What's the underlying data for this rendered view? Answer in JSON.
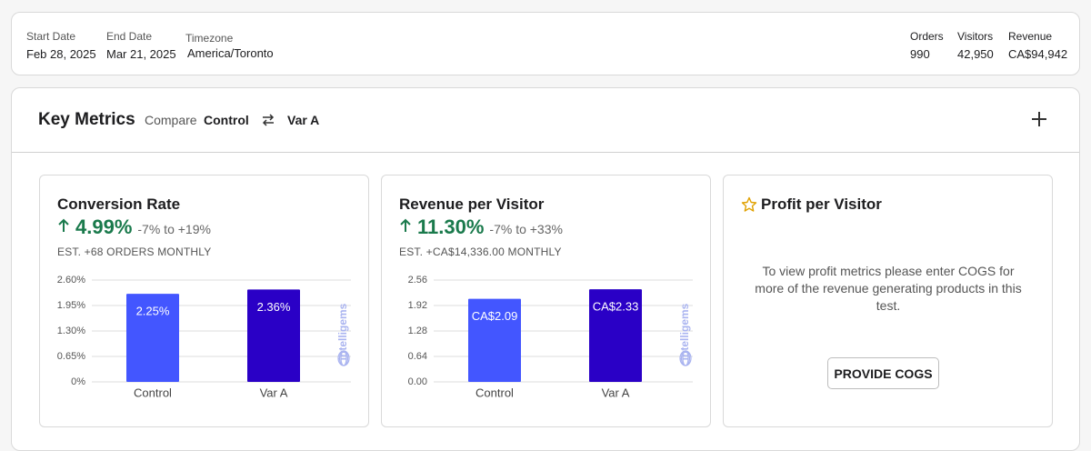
{
  "header": {
    "start_date": {
      "label": "Start Date",
      "value": "Feb 28, 2025"
    },
    "end_date": {
      "label": "End Date",
      "value": "Mar 21, 2025"
    },
    "timezone": {
      "label": "Timezone",
      "value": "America/Toronto"
    },
    "orders": {
      "label": "Orders",
      "value": "990"
    },
    "visitors": {
      "label": "Visitors",
      "value": "42,950"
    },
    "revenue": {
      "label": "Revenue",
      "value": "CA$94,942"
    }
  },
  "key_metrics": {
    "title": "Key Metrics",
    "compare_label": "Compare",
    "control": "Control",
    "variant": "Var A"
  },
  "cards": [
    {
      "title": "Conversion Rate",
      "value": "4.99%",
      "range": "-7% to +19%",
      "estimate": "EST. +68 ORDERS MONTHLY"
    },
    {
      "title": "Revenue per Visitor",
      "value": "11.30%",
      "range": "-7% to +33%",
      "estimate": "EST. +CA$14,336.00 MONTHLY"
    },
    {
      "title": "Profit per Visitor",
      "message": "To view profit metrics please enter COGS for more of the revenue generating products in this test.",
      "button": "PROVIDE COGS"
    }
  ],
  "chart_data": [
    {
      "type": "bar",
      "categories": [
        "Control",
        "Var A"
      ],
      "values": [
        2.25,
        2.36
      ],
      "value_labels": [
        "2.25%",
        "2.36%"
      ],
      "colors": [
        "#4356ff",
        "#2a00c6"
      ],
      "ylim": [
        0,
        2.6
      ],
      "yticks": [
        {
          "value": 0,
          "label": "0%"
        },
        {
          "value": 0.65,
          "label": "0.65%"
        },
        {
          "value": 1.3,
          "label": "1.30%"
        },
        {
          "value": 1.95,
          "label": "1.95%"
        },
        {
          "value": 2.6,
          "label": "2.60%"
        }
      ],
      "grid": true,
      "watermark": "intelligems"
    },
    {
      "type": "bar",
      "categories": [
        "Control",
        "Var A"
      ],
      "values": [
        2.09,
        2.33
      ],
      "value_labels": [
        "CA$2.09",
        "CA$2.33"
      ],
      "colors": [
        "#4356ff",
        "#2a00c6"
      ],
      "ylim": [
        0,
        2.56
      ],
      "yticks": [
        {
          "value": 0,
          "label": "0.00"
        },
        {
          "value": 0.64,
          "label": "0.64"
        },
        {
          "value": 1.28,
          "label": "1.28"
        },
        {
          "value": 1.92,
          "label": "1.92"
        },
        {
          "value": 2.56,
          "label": "2.56"
        }
      ],
      "grid": true,
      "watermark": "intelligems"
    }
  ]
}
